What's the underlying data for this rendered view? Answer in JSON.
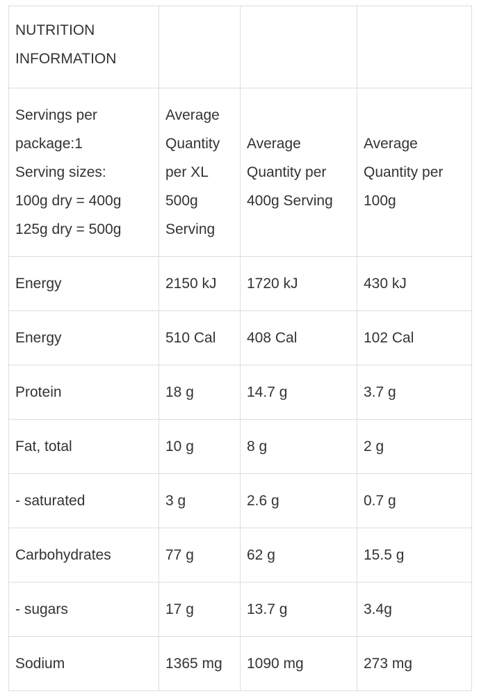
{
  "table": {
    "rows": [
      [
        "NUTRITION INFORMATION",
        "",
        "",
        ""
      ],
      [
        [
          "Servings per package:1",
          "Serving sizes:",
          "100g dry = 400g",
          "125g dry = 500g"
        ],
        "Average Quantity per XL 500g Serving",
        "Average Quantity per 400g Serving",
        "Average Quantity per 100g"
      ],
      [
        "Energy",
        "2150 kJ",
        "1720 kJ",
        "430 kJ"
      ],
      [
        "Energy",
        "510 Cal",
        "408 Cal",
        "102 Cal"
      ],
      [
        "Protein",
        "18 g",
        "14.7 g",
        "3.7 g"
      ],
      [
        "Fat, total",
        "10 g",
        "8 g",
        "2 g"
      ],
      [
        "- saturated",
        "3 g",
        "2.6 g",
        "0.7 g"
      ],
      [
        "Carbohydrates",
        "77 g",
        "62 g",
        "15.5 g"
      ],
      [
        "- sugars",
        "17 g",
        "13.7 g",
        "3.4g"
      ],
      [
        "Sodium",
        "1365 mg",
        "1090 mg",
        "273 mg"
      ]
    ]
  }
}
